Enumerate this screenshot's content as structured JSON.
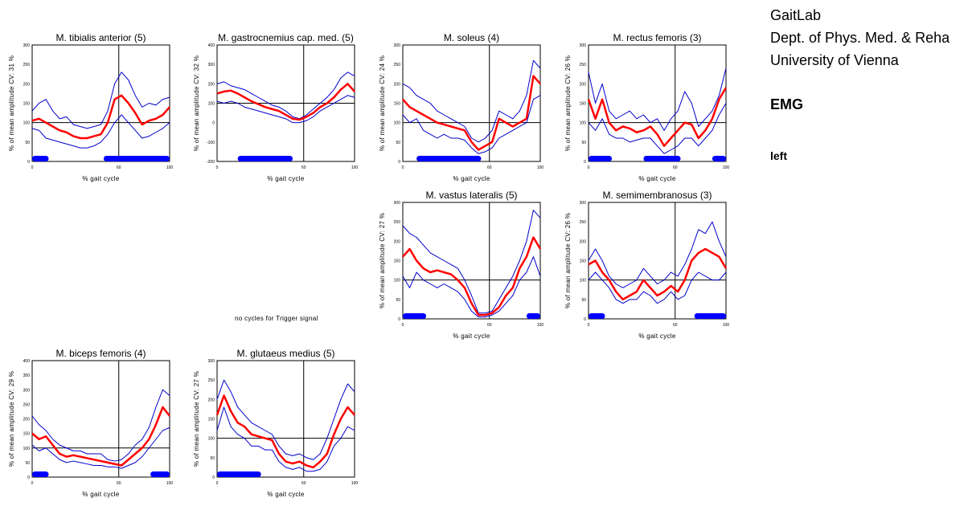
{
  "header": {
    "lines": [
      "GaitLab",
      "Dept. of Phys. Med. & Reha",
      "University of Vienna"
    ],
    "section": "EMG",
    "side": "left"
  },
  "empty_note": "no cycles for Trigger signal",
  "colors": {
    "mean": "#ff0000",
    "band": "#0000cc",
    "phase": "#0000ff",
    "axis": "#000000"
  },
  "chart_data": [
    {
      "type": "line",
      "title": "M. tibialis anterior (5)",
      "xlabel": "% gait cycle",
      "ylabel": "% of mean amplitude  CV: 31 %",
      "xlim": [
        0,
        100
      ],
      "ylim": [
        0,
        300
      ],
      "yticks": [
        "0",
        "50",
        "100",
        "150",
        "200",
        "250",
        "300"
      ],
      "xticks": [
        "0",
        "60",
        "100"
      ],
      "ref_x": 63,
      "ref_y": 100,
      "phases": [
        [
          0,
          12
        ],
        [
          52,
          100
        ]
      ],
      "x": [
        0,
        5,
        10,
        15,
        20,
        25,
        30,
        35,
        40,
        45,
        50,
        55,
        60,
        65,
        70,
        75,
        80,
        85,
        90,
        95,
        100
      ],
      "series": [
        {
          "role": "upper",
          "values": [
            130,
            150,
            160,
            130,
            110,
            115,
            95,
            90,
            85,
            90,
            95,
            130,
            200,
            230,
            210,
            170,
            140,
            150,
            145,
            160,
            165
          ]
        },
        {
          "role": "mean",
          "values": [
            105,
            110,
            100,
            90,
            80,
            75,
            65,
            60,
            60,
            65,
            70,
            100,
            160,
            170,
            150,
            125,
            95,
            105,
            110,
            120,
            140
          ]
        },
        {
          "role": "lower",
          "values": [
            85,
            80,
            60,
            55,
            50,
            45,
            40,
            35,
            35,
            40,
            50,
            70,
            100,
            120,
            100,
            80,
            60,
            65,
            75,
            85,
            100
          ]
        }
      ]
    },
    {
      "type": "line",
      "title": "M. gastrocnemius cap. med. (5)",
      "xlabel": "% gait cycle",
      "ylabel": "% of mean amplitude  CV: 32 %",
      "xlim": [
        0,
        100
      ],
      "ylim": [
        -200,
        400
      ],
      "yticks": [
        "-200",
        "-100",
        "0",
        "100",
        "200",
        "300",
        "400"
      ],
      "xticks": [
        "0",
        "60",
        "100"
      ],
      "ref_x": 63,
      "ref_y": 100,
      "phases": [
        [
          15,
          55
        ]
      ],
      "x": [
        0,
        5,
        10,
        15,
        20,
        25,
        30,
        35,
        40,
        45,
        50,
        55,
        60,
        65,
        70,
        75,
        80,
        85,
        90,
        95,
        100
      ],
      "series": [
        {
          "role": "upper",
          "values": [
            200,
            210,
            190,
            180,
            170,
            150,
            130,
            110,
            90,
            80,
            60,
            30,
            20,
            40,
            70,
            100,
            130,
            170,
            230,
            260,
            240
          ]
        },
        {
          "role": "mean",
          "values": [
            150,
            160,
            165,
            150,
            130,
            110,
            95,
            80,
            70,
            60,
            40,
            20,
            15,
            30,
            50,
            80,
            100,
            130,
            170,
            200,
            160
          ]
        },
        {
          "role": "lower",
          "values": [
            110,
            100,
            110,
            100,
            80,
            70,
            60,
            50,
            40,
            30,
            20,
            0,
            0,
            10,
            30,
            60,
            80,
            100,
            120,
            140,
            130
          ]
        }
      ]
    },
    {
      "type": "line",
      "title": "M. soleus (4)",
      "xlabel": "% gait cycle",
      "ylabel": "% of mean amplitude  CV: 24 %",
      "xlim": [
        0,
        100
      ],
      "ylim": [
        0,
        300
      ],
      "yticks": [
        "0",
        "50",
        "100",
        "150",
        "200",
        "250",
        "300"
      ],
      "xticks": [
        "0",
        "60",
        "100"
      ],
      "ref_x": 63,
      "ref_y": 100,
      "phases": [
        [
          10,
          57
        ]
      ],
      "x": [
        0,
        5,
        10,
        15,
        20,
        25,
        30,
        35,
        40,
        45,
        50,
        55,
        60,
        65,
        70,
        75,
        80,
        85,
        90,
        95,
        100
      ],
      "series": [
        {
          "role": "upper",
          "values": [
            200,
            190,
            170,
            160,
            150,
            130,
            120,
            110,
            100,
            90,
            60,
            50,
            60,
            80,
            130,
            120,
            110,
            130,
            170,
            260,
            240
          ]
        },
        {
          "role": "mean",
          "values": [
            160,
            140,
            130,
            120,
            110,
            100,
            95,
            90,
            85,
            80,
            50,
            30,
            40,
            50,
            110,
            100,
            90,
            100,
            110,
            220,
            200
          ]
        },
        {
          "role": "lower",
          "values": [
            120,
            100,
            110,
            80,
            70,
            60,
            70,
            60,
            60,
            55,
            35,
            20,
            25,
            35,
            60,
            70,
            80,
            90,
            100,
            160,
            170
          ]
        }
      ]
    },
    {
      "type": "line",
      "title": "M. rectus femoris (3)",
      "xlabel": "% gait cycle",
      "ylabel": "% of mean amplitude  CV: 26 %",
      "xlim": [
        0,
        100
      ],
      "ylim": [
        0,
        300
      ],
      "yticks": [
        "0",
        "50",
        "100",
        "150",
        "200",
        "250",
        "300"
      ],
      "xticks": [
        "0",
        "60",
        "100"
      ],
      "ref_x": 63,
      "ref_y": 100,
      "phases": [
        [
          0,
          17
        ],
        [
          40,
          67
        ],
        [
          90,
          100
        ]
      ],
      "x": [
        0,
        5,
        10,
        15,
        20,
        25,
        30,
        35,
        40,
        45,
        50,
        55,
        60,
        65,
        70,
        75,
        80,
        85,
        90,
        95,
        100
      ],
      "series": [
        {
          "role": "upper",
          "values": [
            230,
            150,
            200,
            130,
            110,
            120,
            130,
            110,
            120,
            100,
            110,
            80,
            110,
            130,
            180,
            150,
            90,
            110,
            130,
            170,
            240
          ]
        },
        {
          "role": "mean",
          "values": [
            160,
            110,
            160,
            100,
            80,
            90,
            85,
            75,
            80,
            90,
            70,
            40,
            60,
            80,
            100,
            95,
            60,
            80,
            110,
            160,
            190
          ]
        },
        {
          "role": "lower",
          "values": [
            100,
            80,
            110,
            70,
            60,
            60,
            50,
            55,
            60,
            60,
            40,
            20,
            30,
            40,
            60,
            60,
            40,
            60,
            80,
            120,
            150
          ]
        }
      ]
    },
    {
      "type": "line",
      "title": "M. vastus lateralis (5)",
      "xlabel": "% gait cycle",
      "ylabel": "% of mean amplitude  CV: 27 %",
      "xlim": [
        0,
        100
      ],
      "ylim": [
        0,
        300
      ],
      "yticks": [
        "0",
        "50",
        "100",
        "150",
        "200",
        "250",
        "300"
      ],
      "xticks": [
        "0",
        "60",
        "100"
      ],
      "ref_x": 63,
      "ref_y": 100,
      "phases": [
        [
          0,
          17
        ],
        [
          90,
          100
        ]
      ],
      "x": [
        0,
        5,
        10,
        15,
        20,
        25,
        30,
        35,
        40,
        45,
        50,
        55,
        60,
        65,
        70,
        75,
        80,
        85,
        90,
        95,
        100
      ],
      "series": [
        {
          "role": "upper",
          "values": [
            240,
            220,
            210,
            190,
            170,
            160,
            150,
            140,
            130,
            100,
            60,
            15,
            15,
            20,
            50,
            80,
            110,
            150,
            200,
            280,
            260
          ]
        },
        {
          "role": "mean",
          "values": [
            160,
            180,
            150,
            130,
            120,
            125,
            120,
            115,
            100,
            80,
            40,
            10,
            10,
            15,
            30,
            60,
            80,
            130,
            160,
            210,
            180
          ]
        },
        {
          "role": "lower",
          "values": [
            110,
            80,
            120,
            100,
            90,
            80,
            90,
            80,
            70,
            50,
            20,
            5,
            5,
            10,
            20,
            40,
            60,
            100,
            120,
            160,
            110
          ]
        }
      ]
    },
    {
      "type": "line",
      "title": "M. semimembranosus (3)",
      "xlabel": "% gait cycle",
      "ylabel": "% of mean amplitude  CV: 26 %",
      "xlim": [
        0,
        100
      ],
      "ylim": [
        0,
        300
      ],
      "yticks": [
        "0",
        "50",
        "100",
        "150",
        "200",
        "250",
        "300"
      ],
      "xticks": [
        "0",
        "60",
        "100"
      ],
      "ref_x": 63,
      "ref_y": 100,
      "phases": [
        [
          0,
          12
        ],
        [
          77,
          100
        ]
      ],
      "x": [
        0,
        5,
        10,
        15,
        20,
        25,
        30,
        35,
        40,
        45,
        50,
        55,
        60,
        65,
        70,
        75,
        80,
        85,
        90,
        95,
        100
      ],
      "series": [
        {
          "role": "upper",
          "values": [
            150,
            180,
            150,
            110,
            90,
            80,
            90,
            100,
            130,
            110,
            90,
            100,
            120,
            110,
            140,
            180,
            230,
            220,
            250,
            200,
            160
          ]
        },
        {
          "role": "mean",
          "values": [
            140,
            150,
            120,
            100,
            70,
            50,
            60,
            70,
            100,
            80,
            60,
            70,
            85,
            70,
            100,
            150,
            170,
            180,
            170,
            160,
            130
          ]
        },
        {
          "role": "lower",
          "values": [
            100,
            120,
            100,
            80,
            50,
            40,
            50,
            50,
            70,
            60,
            40,
            50,
            70,
            50,
            60,
            100,
            120,
            110,
            100,
            100,
            120
          ]
        }
      ]
    },
    {
      "type": "line",
      "title": "M. biceps femoris (4)",
      "xlabel": "% gait cycle",
      "ylabel": "% of mean amplitude  CV: 29 %",
      "xlim": [
        0,
        100
      ],
      "ylim": [
        0,
        400
      ],
      "yticks": [
        "0",
        "50",
        "100",
        "150",
        "200",
        "250",
        "300",
        "350",
        "400"
      ],
      "xticks": [
        "0",
        "60",
        "100"
      ],
      "ref_x": 63,
      "ref_y": 100,
      "phases": [
        [
          0,
          12
        ],
        [
          86,
          100
        ]
      ],
      "x": [
        0,
        5,
        10,
        15,
        20,
        25,
        30,
        35,
        40,
        45,
        50,
        55,
        60,
        65,
        70,
        75,
        80,
        85,
        90,
        95,
        100
      ],
      "series": [
        {
          "role": "upper",
          "values": [
            210,
            180,
            160,
            130,
            110,
            100,
            90,
            90,
            80,
            80,
            80,
            60,
            55,
            60,
            80,
            110,
            130,
            170,
            240,
            300,
            280
          ]
        },
        {
          "role": "mean",
          "values": [
            150,
            130,
            140,
            110,
            80,
            70,
            75,
            70,
            65,
            60,
            55,
            50,
            45,
            40,
            60,
            80,
            100,
            130,
            180,
            240,
            210
          ]
        },
        {
          "role": "lower",
          "values": [
            110,
            90,
            100,
            80,
            60,
            50,
            55,
            50,
            45,
            40,
            40,
            35,
            35,
            30,
            40,
            50,
            70,
            100,
            130,
            160,
            170
          ]
        }
      ]
    },
    {
      "type": "line",
      "title": "M. glutaeus medius (5)",
      "xlabel": "% gait cycle",
      "ylabel": "% of mean amplitude  CV: 27 %",
      "xlim": [
        0,
        100
      ],
      "ylim": [
        0,
        300
      ],
      "yticks": [
        "0",
        "50",
        "100",
        "150",
        "200",
        "250",
        "300"
      ],
      "xticks": [
        "0",
        "60",
        "100"
      ],
      "ref_x": 63,
      "ref_y": 100,
      "phases": [
        [
          0,
          32
        ]
      ],
      "x": [
        0,
        5,
        10,
        15,
        20,
        25,
        30,
        35,
        40,
        45,
        50,
        55,
        60,
        65,
        70,
        75,
        80,
        85,
        90,
        95,
        100
      ],
      "series": [
        {
          "role": "upper",
          "values": [
            200,
            250,
            220,
            180,
            160,
            140,
            130,
            120,
            110,
            80,
            60,
            55,
            60,
            50,
            45,
            60,
            100,
            150,
            200,
            240,
            220
          ]
        },
        {
          "role": "mean",
          "values": [
            160,
            210,
            170,
            140,
            130,
            110,
            105,
            100,
            95,
            60,
            40,
            35,
            40,
            30,
            25,
            40,
            60,
            110,
            150,
            180,
            160
          ]
        },
        {
          "role": "lower",
          "values": [
            120,
            180,
            130,
            110,
            100,
            80,
            80,
            70,
            70,
            40,
            25,
            20,
            25,
            15,
            15,
            20,
            40,
            80,
            100,
            130,
            120
          ]
        }
      ]
    }
  ]
}
